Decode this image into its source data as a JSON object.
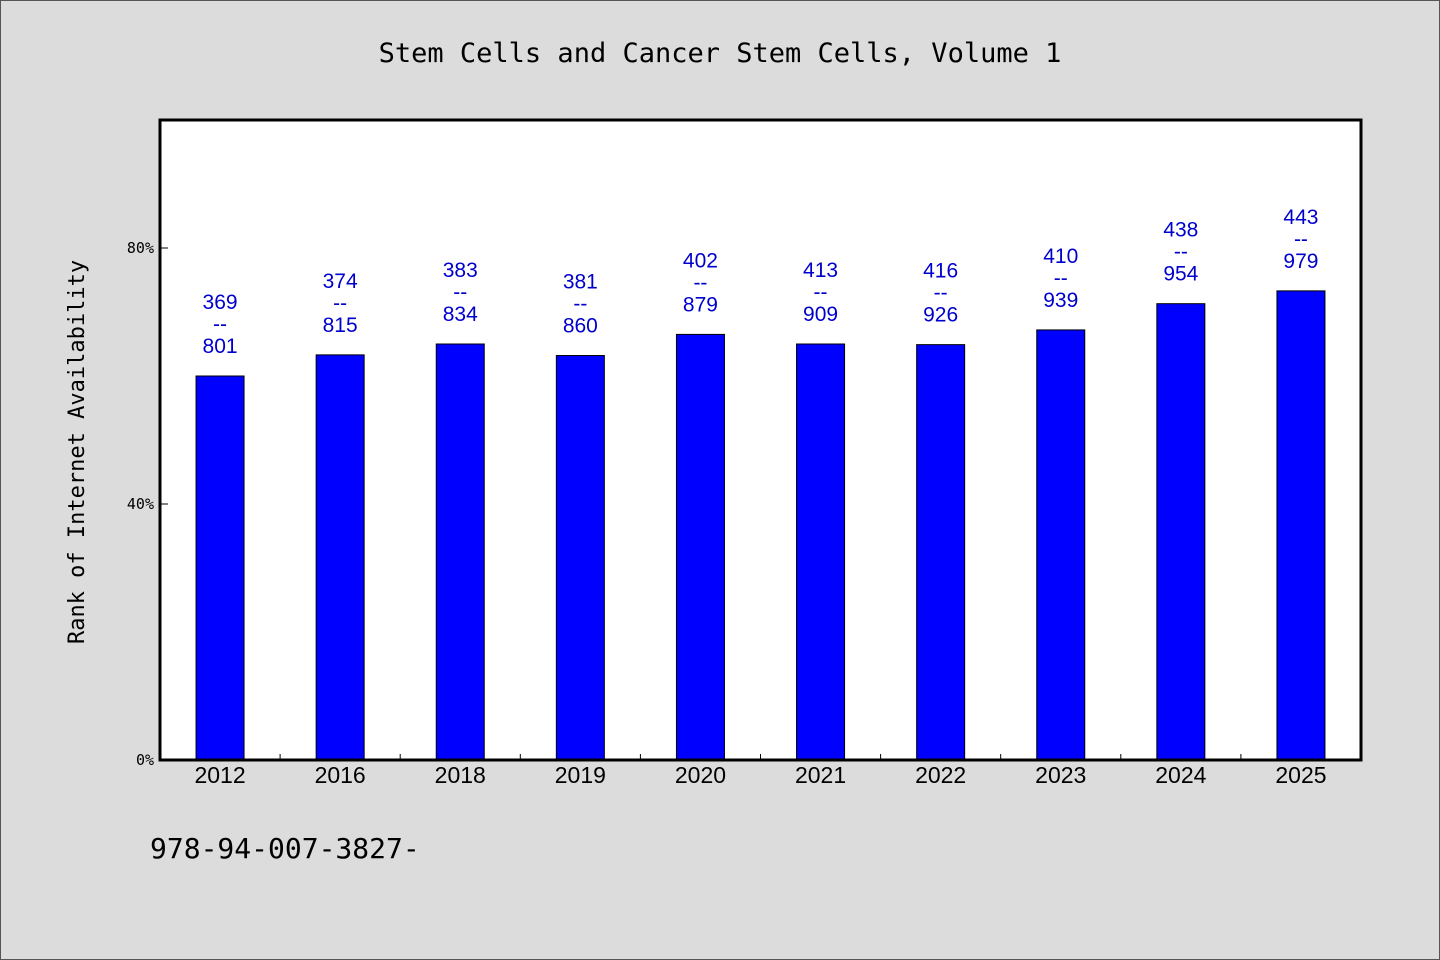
{
  "chart_data": {
    "type": "bar",
    "title": "Stem Cells and Cancer Stem Cells, Volume 1",
    "xlabel": "",
    "ylabel": "Rank of Internet Availability",
    "categories": [
      "2012",
      "2016",
      "2018",
      "2019",
      "2020",
      "2021",
      "2022",
      "2023",
      "2024",
      "2025"
    ],
    "values": [
      0.6,
      0.633,
      0.65,
      0.632,
      0.665,
      0.65,
      0.649,
      0.672,
      0.713,
      0.733
    ],
    "labels_top": [
      "369",
      "374",
      "383",
      "381",
      "402",
      "413",
      "416",
      "410",
      "438",
      "443"
    ],
    "labels_sep": "--",
    "labels_bottom": [
      "801",
      "815",
      "834",
      "860",
      "879",
      "909",
      "926",
      "939",
      "954",
      "979"
    ],
    "ylim": [
      0,
      1.0
    ],
    "yticks": [
      0,
      0.4,
      0.8
    ],
    "ytick_labels": [
      "0%",
      "40%",
      "80%"
    ],
    "bar_color": "#0000ff",
    "label_color": "#0000cc",
    "grid": false
  },
  "footer": {
    "isbn": "978-94-007-3827-"
  }
}
